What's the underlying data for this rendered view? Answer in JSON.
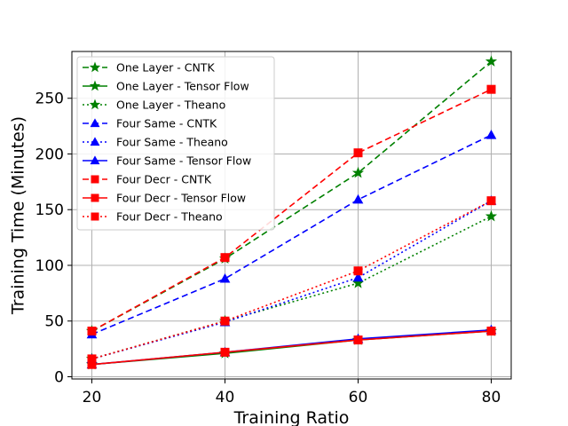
{
  "chart_data": {
    "type": "line",
    "xlabel": "Training Ratio",
    "ylabel": "Training Time (Minutes)",
    "x": [
      20,
      40,
      60,
      80
    ],
    "xlim": [
      17,
      83
    ],
    "ylim": [
      -2,
      292
    ],
    "xticks": [
      20,
      40,
      60,
      80
    ],
    "yticks": [
      0,
      50,
      100,
      150,
      200,
      250
    ],
    "grid": true,
    "legend_position": "top-left",
    "series": [
      {
        "name": "One Layer - CNTK",
        "color": "#008000",
        "linestyle": "dashed",
        "marker": "star",
        "values": [
          41,
          106,
          183,
          283
        ]
      },
      {
        "name": "One Layer - Tensor Flow",
        "color": "#008000",
        "linestyle": "solid",
        "marker": "star",
        "values": [
          11,
          21,
          33,
          41
        ]
      },
      {
        "name": "One Layer - Theano",
        "color": "#008000",
        "linestyle": "dotted",
        "marker": "star",
        "values": [
          16,
          50,
          84,
          144
        ]
      },
      {
        "name": "Four Same - CNTK",
        "color": "#0000ff",
        "linestyle": "dashed",
        "marker": "triangle",
        "values": [
          38,
          88,
          159,
          217
        ]
      },
      {
        "name": "Four Same - Theano",
        "color": "#0000ff",
        "linestyle": "dotted",
        "marker": "triangle",
        "values": [
          16,
          49,
          89,
          158
        ]
      },
      {
        "name": "Four Same - Tensor Flow",
        "color": "#0000ff",
        "linestyle": "solid",
        "marker": "triangle",
        "values": [
          11,
          22,
          34,
          42
        ]
      },
      {
        "name": "Four Decr - CNTK",
        "color": "#ff0000",
        "linestyle": "dashed",
        "marker": "square",
        "values": [
          41,
          107,
          201,
          258
        ]
      },
      {
        "name": "Four Decr - Tensor Flow",
        "color": "#ff0000",
        "linestyle": "solid",
        "marker": "square",
        "values": [
          11,
          22,
          33,
          41
        ]
      },
      {
        "name": "Four Decr - Theano",
        "color": "#ff0000",
        "linestyle": "dotted",
        "marker": "square",
        "values": [
          16,
          50,
          95,
          158
        ]
      }
    ]
  }
}
